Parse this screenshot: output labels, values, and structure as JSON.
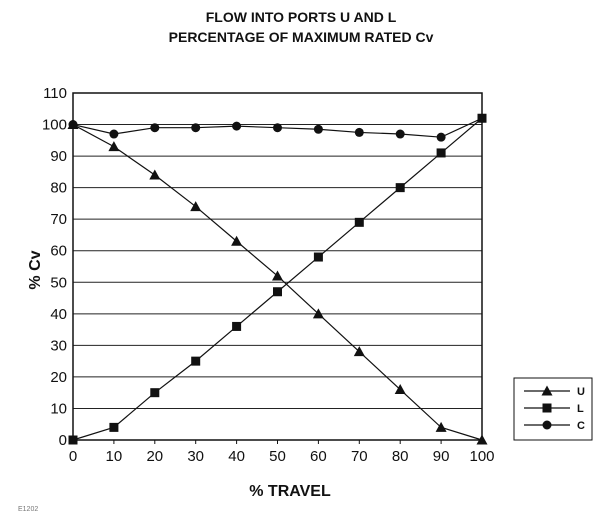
{
  "chart_data": {
    "type": "line",
    "title": "FLOW INTO PORTS U AND L",
    "subtitle": "PERCENTAGE OF MAXIMUM RATED Cv",
    "xlabel": "% TRAVEL",
    "ylabel": "% Cv",
    "xlim": [
      0,
      100
    ],
    "ylim": [
      0,
      110
    ],
    "x_ticks": [
      0,
      10,
      20,
      30,
      40,
      50,
      60,
      70,
      80,
      90,
      100
    ],
    "y_ticks": [
      0,
      10,
      20,
      30,
      40,
      50,
      60,
      70,
      80,
      90,
      100,
      110
    ],
    "grid": "horizontal",
    "legend_position": "right",
    "x": [
      0,
      10,
      20,
      30,
      40,
      50,
      60,
      70,
      80,
      90,
      100
    ],
    "series": [
      {
        "name": "U",
        "marker": "triangle",
        "values": [
          100,
          93,
          84,
          74,
          63,
          52,
          40,
          28,
          16,
          4,
          0
        ]
      },
      {
        "name": "L",
        "marker": "square",
        "values": [
          0,
          4,
          15,
          25,
          36,
          47,
          58,
          69,
          80,
          91,
          102
        ]
      },
      {
        "name": "C",
        "marker": "circle",
        "values": [
          100,
          97,
          99,
          99,
          99.5,
          99,
          98.5,
          97.5,
          97,
          96,
          102
        ]
      }
    ],
    "figure_code": "E1202"
  }
}
